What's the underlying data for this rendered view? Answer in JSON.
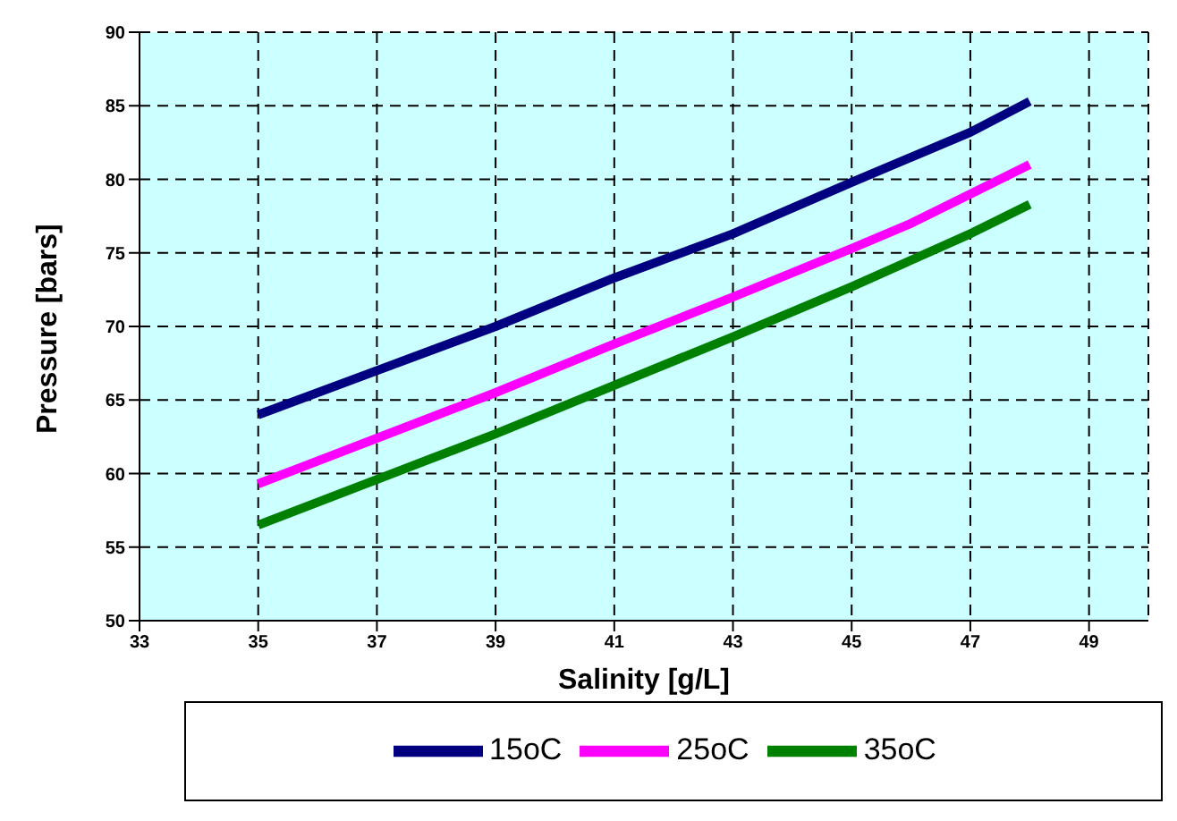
{
  "chart_data": {
    "type": "line",
    "xlabel": "Salinity [g/L]",
    "ylabel": "Pressure [bars]",
    "x": [
      35,
      37,
      39,
      41,
      43,
      45,
      46,
      47,
      48
    ],
    "series": [
      {
        "name": "15oC",
        "color": "#000080",
        "values": [
          64,
          67,
          70,
          73.3,
          76.3,
          79.8,
          81.5,
          83.2,
          85.3
        ]
      },
      {
        "name": "25oC",
        "color": "#ff00ff",
        "values": [
          59.3,
          62.4,
          65.5,
          68.8,
          72,
          75.3,
          77,
          79,
          81
        ]
      },
      {
        "name": "35oC",
        "color": "#008000",
        "values": [
          56.5,
          59.6,
          62.7,
          66,
          69.3,
          72.7,
          74.5,
          76.3,
          78.3
        ]
      }
    ],
    "xlim": [
      33,
      50
    ],
    "xticks": [
      33,
      35,
      37,
      39,
      41,
      43,
      45,
      47,
      49
    ],
    "ylim": [
      50,
      90
    ],
    "yticks": [
      50,
      55,
      60,
      65,
      70,
      75,
      80,
      85,
      90
    ],
    "grid": true,
    "legend": "bottom",
    "marker": "none",
    "line_style": "solid"
  }
}
